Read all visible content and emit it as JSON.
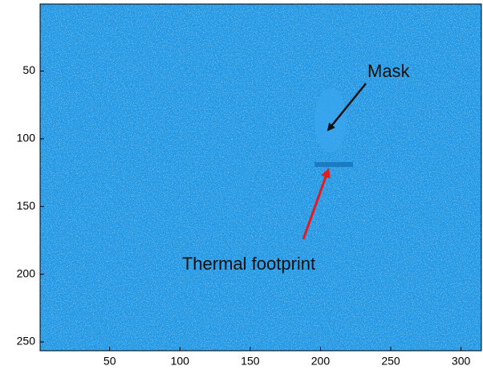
{
  "chart_data": {
    "type": "image",
    "xlim": [
      0.5,
      314.5
    ],
    "ylim": [
      0.5,
      256.5
    ],
    "y_reversed": true,
    "xticks": [
      50,
      100,
      150,
      200,
      250,
      300
    ],
    "yticks": [
      50,
      100,
      150,
      200,
      250
    ],
    "color": "#2196e3",
    "annotations": [
      "Mask",
      "Thermal footprint"
    ]
  }
}
